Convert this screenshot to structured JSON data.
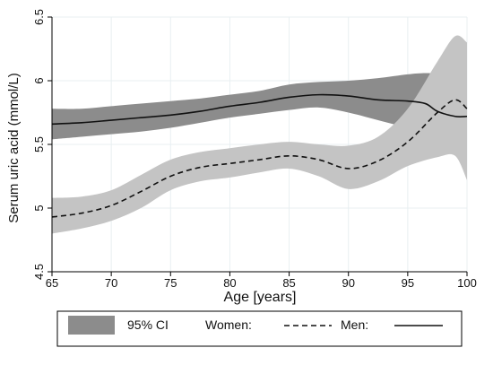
{
  "chart_data": {
    "type": "line",
    "xlabel": "Age [years]",
    "ylabel": "Serum uric acid (mmol/L)",
    "xlim": [
      65,
      100
    ],
    "ylim": [
      4.5,
      6.5
    ],
    "x_ticks": [
      65,
      70,
      75,
      80,
      85,
      90,
      95,
      100
    ],
    "y_ticks": [
      4.5,
      5,
      5.5,
      6,
      6.5
    ],
    "y_tick_labels": [
      "4.5",
      "5",
      "5.5",
      "6",
      "6.5"
    ],
    "grid": true,
    "legend": {
      "placement": "bottom",
      "items": [
        {
          "label": "95% CI",
          "symbol": "band"
        },
        {
          "label": "Women:",
          "symbol": "dashed"
        },
        {
          "label": "Men:",
          "symbol": "solid"
        }
      ]
    },
    "colors": {
      "men_ci": "#8c8c8c",
      "women_ci": "#c4c4c4",
      "line": "#111111",
      "grid": "#e8eff2",
      "plot_bg": "#ffffff"
    },
    "series": [
      {
        "name": "Men:",
        "style": "solid",
        "x": [
          65,
          67.5,
          70,
          72.5,
          75,
          77.5,
          80,
          82.5,
          85,
          87.5,
          90,
          92.5,
          95,
          96.5,
          97.5,
          99,
          100
        ],
        "y": [
          5.66,
          5.67,
          5.69,
          5.71,
          5.73,
          5.76,
          5.8,
          5.83,
          5.87,
          5.89,
          5.88,
          5.85,
          5.84,
          5.82,
          5.76,
          5.72,
          5.72
        ],
        "lower": [
          5.54,
          5.56,
          5.58,
          5.6,
          5.63,
          5.67,
          5.71,
          5.74,
          5.77,
          5.79,
          5.75,
          5.69,
          5.63,
          5.6,
          5.56,
          5.5,
          5.46
        ],
        "upper": [
          5.78,
          5.78,
          5.8,
          5.82,
          5.84,
          5.86,
          5.89,
          5.92,
          5.97,
          5.99,
          6.0,
          6.02,
          6.05,
          6.06,
          6.05,
          6.0,
          5.98
        ]
      },
      {
        "name": "Women:",
        "style": "dashed",
        "x": [
          65,
          67.5,
          70,
          72.5,
          75,
          77.5,
          80,
          82.5,
          85,
          87.5,
          90,
          92.5,
          95,
          97.5,
          99,
          100
        ],
        "y": [
          4.93,
          4.96,
          5.02,
          5.13,
          5.25,
          5.32,
          5.35,
          5.38,
          5.41,
          5.38,
          5.31,
          5.37,
          5.52,
          5.75,
          5.85,
          5.78
        ],
        "lower": [
          4.8,
          4.84,
          4.9,
          5.0,
          5.14,
          5.21,
          5.24,
          5.28,
          5.31,
          5.25,
          5.15,
          5.21,
          5.33,
          5.4,
          5.41,
          5.22
        ],
        "upper": [
          5.08,
          5.09,
          5.14,
          5.26,
          5.38,
          5.44,
          5.47,
          5.5,
          5.52,
          5.5,
          5.49,
          5.56,
          5.78,
          6.15,
          6.35,
          6.3
        ]
      }
    ]
  }
}
